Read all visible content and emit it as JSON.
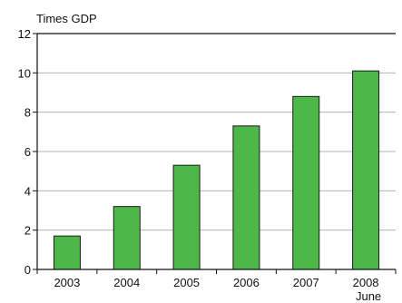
{
  "chart_data": {
    "type": "bar",
    "y_unit_label": "Times GDP",
    "categories": [
      "2003",
      "2004",
      "2005",
      "2006",
      "2007",
      "2008"
    ],
    "category_sublabels": [
      "",
      "",
      "",
      "",
      "",
      "June"
    ],
    "values": [
      1.7,
      3.2,
      5.3,
      7.3,
      8.8,
      10.1
    ],
    "ylim": [
      0,
      12
    ],
    "yticks": [
      0,
      2,
      4,
      6,
      8,
      10,
      12
    ],
    "grid": true,
    "bar_color": "#4db848",
    "bar_outline": "#1a1a1a",
    "grid_color": "#b3b3b3"
  }
}
